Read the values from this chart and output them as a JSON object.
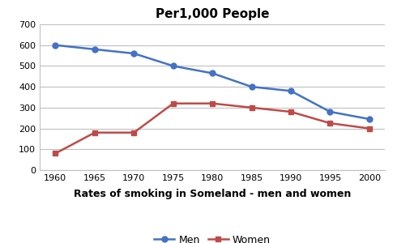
{
  "title": "Per1,000 People",
  "xlabel": "Rates of smoking in Someland - men and women",
  "years": [
    1960,
    1965,
    1970,
    1975,
    1980,
    1985,
    1990,
    1995,
    2000
  ],
  "men": [
    600,
    580,
    560,
    500,
    465,
    400,
    380,
    280,
    245
  ],
  "women": [
    80,
    180,
    180,
    320,
    320,
    300,
    280,
    225,
    200
  ],
  "men_color": "#4472C4",
  "women_color": "#BE4B48",
  "men_label": "Men",
  "women_label": "Women",
  "ylim": [
    0,
    700
  ],
  "yticks": [
    0,
    100,
    200,
    300,
    400,
    500,
    600,
    700
  ],
  "background_color": "#ffffff",
  "grid_color": "#c0c0c0",
  "title_fontsize": 11,
  "xlabel_fontsize": 9,
  "tick_fontsize": 8,
  "legend_fontsize": 9
}
